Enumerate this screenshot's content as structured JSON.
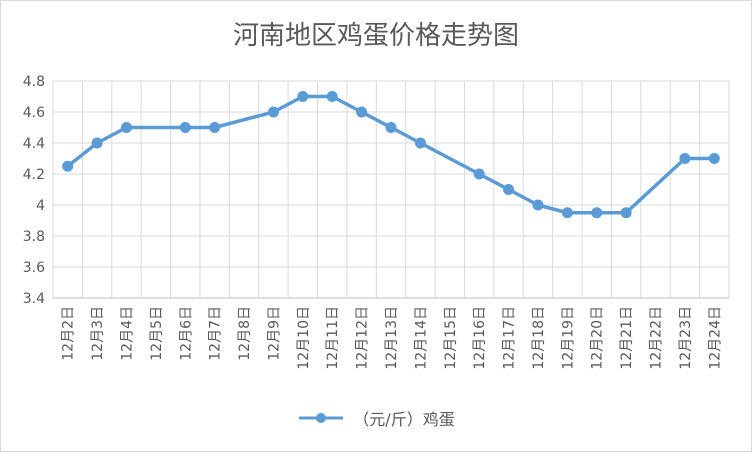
{
  "chart_data": {
    "type": "line",
    "title": "河南地区鸡蛋价格走势图",
    "categories": [
      "12月2日",
      "12月3日",
      "12月4日",
      "12月5日",
      "12月6日",
      "12月7日",
      "12月8日",
      "12月9日",
      "12月10日",
      "12月11日",
      "12月12日",
      "12月13日",
      "12月14日",
      "12月15日",
      "12月16日",
      "12月17日",
      "12月18日",
      "12月19日",
      "12月20日",
      "12月21日",
      "12月22日",
      "12月23日",
      "12月24日"
    ],
    "series": [
      {
        "name": "（元/斤）鸡蛋",
        "color": "#5b9bd5",
        "values": [
          4.25,
          4.4,
          4.5,
          null,
          4.5,
          4.5,
          null,
          4.6,
          4.7,
          4.7,
          4.6,
          4.5,
          4.4,
          null,
          4.2,
          4.1,
          4.0,
          3.95,
          3.95,
          3.95,
          null,
          4.3,
          4.3
        ]
      }
    ],
    "ylim": [
      3.4,
      4.8
    ],
    "yticks": [
      3.4,
      3.6,
      3.8,
      4.0,
      4.2,
      4.4,
      4.6,
      4.8
    ],
    "ytick_labels": [
      "3.4",
      "3.6",
      "3.8",
      "4",
      "4.2",
      "4.4",
      "4.6",
      "4.8"
    ],
    "grid": true,
    "legend": "bottom"
  }
}
